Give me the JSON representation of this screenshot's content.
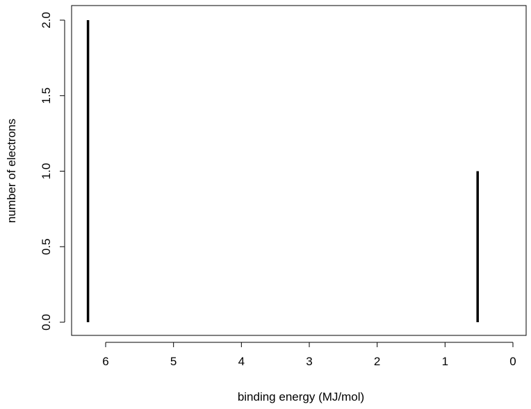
{
  "chart_data": {
    "type": "bar",
    "style": "spikes",
    "title": "",
    "xlabel": "binding energy (MJ/mol)",
    "ylabel": "number of electrons",
    "x_reversed": true,
    "xlim": [
      6.5,
      0
    ],
    "ylim": [
      0,
      2
    ],
    "xticks": [
      6,
      5,
      4,
      3,
      2,
      1,
      0
    ],
    "yticks": [
      0.0,
      0.5,
      1.0,
      1.5,
      2.0
    ],
    "ytick_labels": [
      "0.0",
      "0.5",
      "1.0",
      "1.5",
      "2.0"
    ],
    "grid": false,
    "series": [
      {
        "x": [
          6.26,
          0.52
        ],
        "values": [
          2,
          1
        ]
      }
    ],
    "colors": {
      "spike": "#000000",
      "axis": "#000000"
    }
  }
}
